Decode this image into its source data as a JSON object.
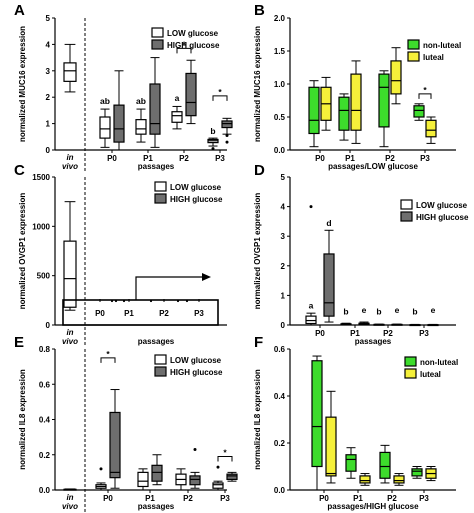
{
  "chart_data": [
    {
      "panel": "A",
      "type": "box",
      "ylabel": "normalized MUC16 expression",
      "xlabel": "passages",
      "ylim": [
        0,
        5
      ],
      "yticks": [
        0,
        1,
        2,
        3,
        4,
        5
      ],
      "invivo": {
        "label_top": "in",
        "label_bottom": "vivo",
        "boxes": [
          {
            "min": 2.2,
            "q1": 2.6,
            "med": 3.0,
            "q3": 3.3,
            "max": 4.0
          }
        ]
      },
      "categories": [
        "P0",
        "P1",
        "P2",
        "P3"
      ],
      "series": [
        {
          "name": "LOW glucose",
          "color": "#ffffff",
          "boxes": [
            {
              "min": 0.1,
              "q1": 0.45,
              "med": 0.8,
              "q3": 1.25,
              "max": 1.55
            },
            {
              "min": 0.3,
              "q1": 0.6,
              "med": 0.8,
              "q3": 1.15,
              "max": 1.55
            },
            {
              "min": 0.8,
              "q1": 1.05,
              "med": 1.3,
              "q3": 1.45,
              "max": 1.65
            },
            {
              "min": 0.15,
              "q1": 0.28,
              "med": 0.35,
              "q3": 0.4,
              "max": 0.45
            }
          ]
        },
        {
          "name": "HIGH glucose",
          "color": "#6e6e6e",
          "boxes": [
            {
              "min": 0.0,
              "q1": 0.3,
              "med": 0.8,
              "q3": 1.7,
              "max": 3.0
            },
            {
              "min": 0.1,
              "q1": 0.6,
              "med": 1.0,
              "q3": 2.5,
              "max": 3.5
            },
            {
              "min": 1.0,
              "q1": 1.3,
              "med": 1.8,
              "q3": 2.9,
              "max": 3.4
            },
            {
              "min": 0.6,
              "q1": 0.85,
              "med": 1.0,
              "q3": 1.1,
              "max": 1.2
            }
          ]
        }
      ],
      "outliers": [
        {
          "cat": 3,
          "series": 1,
          "y": 0.55
        },
        {
          "cat": 3,
          "series": 1,
          "y": 0.3
        },
        {
          "cat": 3,
          "series": 0,
          "y": 0.05
        }
      ],
      "letters": [
        {
          "cat": 0,
          "y": 1.75,
          "text": "ab"
        },
        {
          "cat": 1,
          "y": 1.75,
          "text": "ab"
        },
        {
          "cat": 2,
          "y": 1.85,
          "text": "a"
        },
        {
          "cat": 3,
          "y": 0.6,
          "text": "b"
        }
      ],
      "sig": [
        {
          "cat": 2,
          "y": 3.85,
          "text": "*"
        },
        {
          "cat": 3,
          "y": 2.05,
          "text": "*"
        }
      ]
    },
    {
      "panel": "B",
      "type": "box",
      "ylabel": "normalized MUC16 expression",
      "xlabel": "passages/LOW glucose",
      "ylim": [
        0,
        2
      ],
      "yticks": [
        0.0,
        0.5,
        1.0,
        1.5,
        2.0
      ],
      "categories": [
        "P0",
        "P1",
        "P2",
        "P3"
      ],
      "series": [
        {
          "name": "non-luteal",
          "color": "#3ddc2c",
          "boxes": [
            {
              "min": 0.05,
              "q1": 0.25,
              "med": 0.45,
              "q3": 0.95,
              "max": 1.05
            },
            {
              "min": 0.15,
              "q1": 0.3,
              "med": 0.6,
              "q3": 0.8,
              "max": 0.85
            },
            {
              "min": 0.05,
              "q1": 0.35,
              "med": 0.95,
              "q3": 1.15,
              "max": 1.2
            },
            {
              "min": 0.45,
              "q1": 0.5,
              "med": 0.6,
              "q3": 0.67,
              "max": 0.7
            }
          ]
        },
        {
          "name": "luteal",
          "color": "#f5f03a",
          "boxes": [
            {
              "min": 0.3,
              "q1": 0.45,
              "med": 0.7,
              "q3": 0.95,
              "max": 1.1
            },
            {
              "min": 0.1,
              "q1": 0.3,
              "med": 0.6,
              "q3": 1.15,
              "max": 1.35
            },
            {
              "min": 0.7,
              "q1": 0.85,
              "med": 1.05,
              "q3": 1.35,
              "max": 1.55
            },
            {
              "min": 0.1,
              "q1": 0.2,
              "med": 0.3,
              "q3": 0.45,
              "max": 0.5
            }
          ]
        }
      ],
      "sig": [
        {
          "cat": 3,
          "y": 0.85,
          "text": "*"
        }
      ]
    },
    {
      "panel": "C",
      "type": "box",
      "ylabel": "normalized OVGP1 expression",
      "xlabel": "passages",
      "ylim": [
        0,
        1500
      ],
      "yticks": [
        0,
        500,
        1000,
        1500
      ],
      "invivo": {
        "label_top": "in",
        "label_bottom": "vivo",
        "boxes": [
          {
            "min": 150,
            "q1": 180,
            "med": 470,
            "q3": 850,
            "max": 1250
          }
        ]
      },
      "categories": [
        "P0",
        "P1",
        "P2",
        "P3"
      ],
      "series": [
        {
          "name": "LOW glucose",
          "color": "#ffffff"
        },
        {
          "name": "HIGH glucose",
          "color": "#6e6e6e"
        }
      ]
    },
    {
      "panel": "D",
      "type": "box",
      "ylabel": "normalized OVGP1 expression",
      "xlabel": "passages",
      "ylim": [
        0,
        5
      ],
      "yticks": [
        0,
        1,
        2,
        3,
        4,
        5
      ],
      "categories": [
        "P0",
        "P1",
        "P2",
        "P3"
      ],
      "series": [
        {
          "name": "LOW glucose",
          "color": "#ffffff",
          "boxes": [
            {
              "min": 0.0,
              "q1": 0.05,
              "med": 0.15,
              "q3": 0.3,
              "max": 0.4
            },
            {
              "min": 0.0,
              "q1": 0.01,
              "med": 0.02,
              "q3": 0.04,
              "max": 0.06
            },
            {
              "min": 0.0,
              "q1": 0.0,
              "med": 0.01,
              "q3": 0.02,
              "max": 0.03
            },
            {
              "min": 0.0,
              "q1": 0.0,
              "med": 0.0,
              "q3": 0.01,
              "max": 0.02
            }
          ]
        },
        {
          "name": "HIGH glucose",
          "color": "#6e6e6e",
          "boxes": [
            {
              "min": 0.1,
              "q1": 0.3,
              "med": 0.75,
              "q3": 2.4,
              "max": 3.2
            },
            {
              "min": 0.0,
              "q1": 0.01,
              "med": 0.03,
              "q3": 0.06,
              "max": 0.1
            },
            {
              "min": 0.0,
              "q1": 0.0,
              "med": 0.01,
              "q3": 0.02,
              "max": 0.03
            },
            {
              "min": 0.0,
              "q1": 0.0,
              "med": 0.0,
              "q3": 0.01,
              "max": 0.02
            }
          ]
        }
      ],
      "outliers": [
        {
          "cat": 0,
          "series": 0,
          "y": 4.0
        }
      ],
      "letters": [
        {
          "cat": 0,
          "series": 0,
          "y": 0.55,
          "text": "a"
        },
        {
          "cat": 0,
          "series": 1,
          "y": 3.35,
          "text": "d"
        },
        {
          "cat": 1,
          "series": 0,
          "y": 0.35,
          "text": "b"
        },
        {
          "cat": 1,
          "series": 1,
          "y": 0.4,
          "text": "e"
        },
        {
          "cat": 2,
          "series": 0,
          "y": 0.35,
          "text": "b"
        },
        {
          "cat": 2,
          "series": 1,
          "y": 0.4,
          "text": "e"
        },
        {
          "cat": 3,
          "series": 0,
          "y": 0.35,
          "text": "b"
        },
        {
          "cat": 3,
          "series": 1,
          "y": 0.4,
          "text": "e"
        }
      ]
    },
    {
      "panel": "E",
      "type": "box",
      "ylabel": "normalized IL8 expression",
      "xlabel": "passages",
      "ylim": [
        0,
        0.8
      ],
      "yticks": [
        0.0,
        0.2,
        0.4,
        0.6,
        0.8
      ],
      "invivo": {
        "label_top": "in",
        "label_bottom": "vivo",
        "boxes": [
          {
            "min": 0.0,
            "q1": 0.0,
            "med": 0.002,
            "q3": 0.004,
            "max": 0.006
          }
        ]
      },
      "categories": [
        "P0",
        "P1",
        "P2",
        "P3"
      ],
      "series": [
        {
          "name": "LOW glucose",
          "color": "#ffffff",
          "boxes": [
            {
              "min": 0.0,
              "q1": 0.01,
              "med": 0.02,
              "q3": 0.03,
              "max": 0.04
            },
            {
              "min": 0.0,
              "q1": 0.02,
              "med": 0.05,
              "q3": 0.1,
              "max": 0.12
            },
            {
              "min": 0.0,
              "q1": 0.03,
              "med": 0.06,
              "q3": 0.09,
              "max": 0.12
            },
            {
              "min": 0.0,
              "q1": 0.01,
              "med": 0.03,
              "q3": 0.04,
              "max": 0.05
            }
          ]
        },
        {
          "name": "HIGH glucose",
          "color": "#6e6e6e",
          "boxes": [
            {
              "min": 0.01,
              "q1": 0.07,
              "med": 0.1,
              "q3": 0.44,
              "max": 0.57
            },
            {
              "min": 0.03,
              "q1": 0.05,
              "med": 0.1,
              "q3": 0.14,
              "max": 0.2
            },
            {
              "min": 0.01,
              "q1": 0.03,
              "med": 0.06,
              "q3": 0.08,
              "max": 0.1
            },
            {
              "min": 0.05,
              "q1": 0.06,
              "med": 0.08,
              "q3": 0.09,
              "max": 0.1
            }
          ]
        }
      ],
      "outliers": [
        {
          "cat": 0,
          "series": 0,
          "y": 0.12
        },
        {
          "cat": 2,
          "series": 1,
          "y": 0.23
        },
        {
          "cat": 3,
          "series": 0,
          "y": 0.13
        }
      ],
      "sig": [
        {
          "cat": 0,
          "y": 0.75,
          "text": "*"
        },
        {
          "cat": 3,
          "y": 0.19,
          "text": "*"
        }
      ]
    },
    {
      "panel": "F",
      "type": "box",
      "ylabel": "normalized IL8 expression",
      "xlabel": "passages/HIGH glucose",
      "ylim": [
        0,
        0.6
      ],
      "yticks": [
        0.0,
        0.2,
        0.4,
        0.6
      ],
      "categories": [
        "P0",
        "P1",
        "P2",
        "P3"
      ],
      "series": [
        {
          "name": "non-luteal",
          "color": "#3ddc2c",
          "boxes": [
            {
              "min": 0.0,
              "q1": 0.1,
              "med": 0.27,
              "q3": 0.55,
              "max": 0.57
            },
            {
              "min": 0.05,
              "q1": 0.08,
              "med": 0.13,
              "q3": 0.15,
              "max": 0.18
            },
            {
              "min": 0.03,
              "q1": 0.05,
              "med": 0.1,
              "q3": 0.16,
              "max": 0.19
            },
            {
              "min": 0.05,
              "q1": 0.06,
              "med": 0.08,
              "q3": 0.09,
              "max": 0.1
            }
          ]
        },
        {
          "name": "luteal",
          "color": "#f5f03a",
          "boxes": [
            {
              "min": 0.03,
              "q1": 0.06,
              "med": 0.07,
              "q3": 0.31,
              "max": 0.42
            },
            {
              "min": 0.02,
              "q1": 0.03,
              "med": 0.04,
              "q3": 0.06,
              "max": 0.07
            },
            {
              "min": 0.02,
              "q1": 0.03,
              "med": 0.04,
              "q3": 0.06,
              "max": 0.07
            },
            {
              "min": 0.04,
              "q1": 0.05,
              "med": 0.07,
              "q3": 0.09,
              "max": 0.1
            }
          ]
        }
      ]
    }
  ]
}
